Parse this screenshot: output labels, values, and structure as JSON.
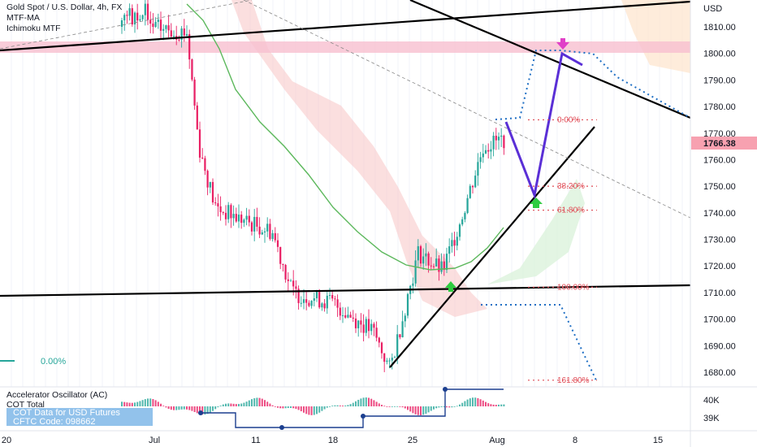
{
  "legend": {
    "symbol": "Gold Spot / U.S. Dollar, 4h, FX",
    "ma": "MTF-MA",
    "ichimoku": "Ichimoku MTF"
  },
  "colors": {
    "bull": "#26a69a",
    "bear": "#e91e63",
    "ma": "#5cb85c",
    "cloud": "#f9c9c9",
    "price_tag": "#f7a1b0",
    "resistance_band": "#f8bfcf",
    "projection": "#5a2fd6",
    "dotted": "#1f6fc4",
    "fib": "#e04b55"
  },
  "chart_data": [
    {
      "type": "line",
      "title": "Gold Spot / U.S. Dollar, 4h, FX",
      "y_axis": {
        "unit": "USD",
        "ticks": [
          1680,
          1690,
          1700,
          1710,
          1720,
          1730,
          1740,
          1750,
          1760,
          1770,
          1780,
          1790,
          1800,
          1810
        ],
        "range": [
          1676,
          1835
        ]
      },
      "x_axis": {
        "ticks": [
          "20",
          "Jul",
          "11",
          "18",
          "25",
          "Aug",
          "8",
          "15"
        ]
      },
      "current_price": 1766.38,
      "series": [
        {
          "name": "Gold Spot / U.S. Dollar",
          "x": [
            "Jun 30",
            "Jul 5",
            "Jul 6",
            "Jul 8",
            "Jul 12",
            "Jul 14",
            "Jul 15",
            "Jul 18",
            "Jul 21",
            "Jul 22",
            "Jul 25",
            "Jul 27",
            "Jul 28",
            "Jul 29",
            "Aug 1"
          ],
          "values": [
            1810,
            1808,
            1765,
            1742,
            1737,
            1733,
            1710,
            1706,
            1695,
            1681,
            1725,
            1718,
            1740,
            1765,
            1768
          ]
        }
      ],
      "fibonacci": [
        {
          "label": "0.00%",
          "price": 1775
        },
        {
          "label": "38.20%",
          "price": 1750
        },
        {
          "label": "61.80%",
          "price": 1741
        },
        {
          "label": "100.00%",
          "price": 1712
        },
        {
          "label": "161.80%",
          "price": 1677
        }
      ],
      "left_marker": "0.00%"
    },
    {
      "type": "bar",
      "title": "Accelerator Oscillator (AC)",
      "cot_label": "COT Total",
      "cot_lines": [
        "COT Data for USD Futures",
        "CFTC Code: 098662"
      ],
      "y_axis_ticks": [
        "40K",
        "39K"
      ]
    }
  ]
}
